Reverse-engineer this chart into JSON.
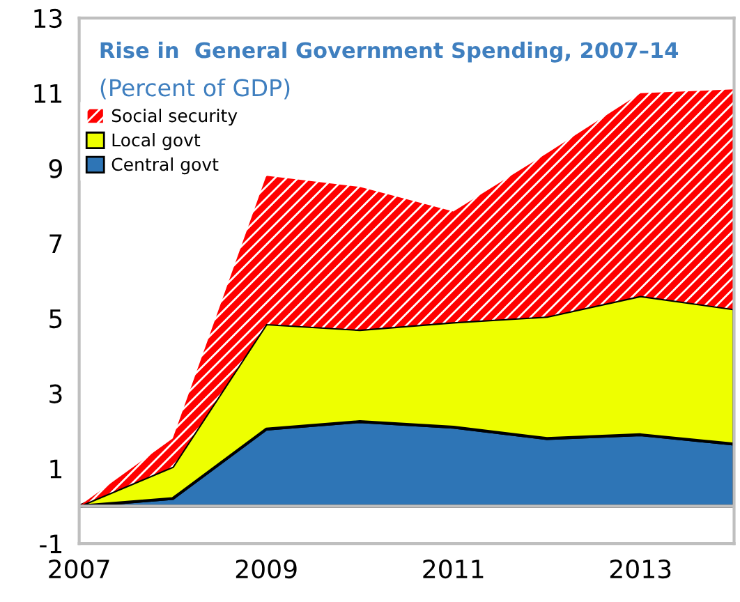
{
  "chart_data": {
    "type": "area",
    "stacked": true,
    "title": "Rise in  General Government Spending, 2007–14",
    "subtitle": "(Percent of GDP)",
    "x": [
      2007,
      2008,
      2009,
      2010,
      2011,
      2012,
      2013,
      2014
    ],
    "series": [
      {
        "name": "Central govt",
        "color": "#2e75b6",
        "values": [
          0,
          0.2,
          2.05,
          2.25,
          2.1,
          1.8,
          1.9,
          1.65
        ]
      },
      {
        "name": "Local govt",
        "color": "#eeff00",
        "values": [
          0,
          0.85,
          2.8,
          2.45,
          2.8,
          3.25,
          3.7,
          3.6
        ]
      },
      {
        "name": "Social security",
        "color": "#ff0000",
        "values": [
          0,
          0.75,
          3.95,
          3.8,
          2.95,
          4.35,
          5.4,
          5.85
        ]
      }
    ],
    "xlim": [
      2007,
      2014
    ],
    "xticks": [
      2007,
      2009,
      2011,
      2013
    ],
    "ylim": [
      -1,
      13
    ],
    "yticks": [
      -1,
      1,
      3,
      5,
      7,
      9,
      11,
      13
    ],
    "ref_lines": [
      {
        "axis": "y",
        "value": 0,
        "color": "#bfbfbf"
      }
    ],
    "grid": false,
    "legend": "top left"
  }
}
